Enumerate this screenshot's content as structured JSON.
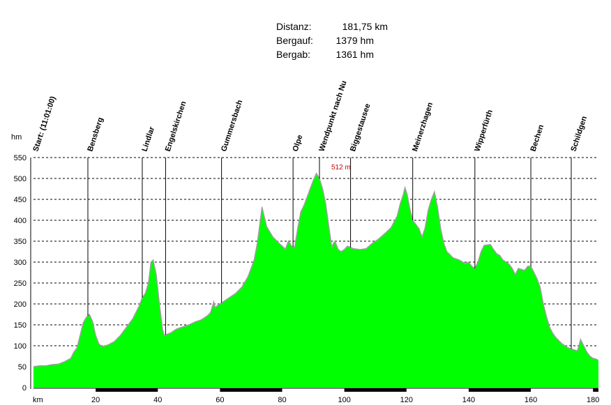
{
  "stats": {
    "distance_label": "Distanz:",
    "distance_value": "181,75 km",
    "ascent_label": "Bergauf:",
    "ascent_value": "1379 hm",
    "descent_label": "Bergab:",
    "descent_value": "1361 hm"
  },
  "colors": {
    "fill": "#00ff00",
    "outline": "#a0a0a0",
    "grid": "#000000",
    "max_label": "#cc0000"
  },
  "chart_data": {
    "type": "area",
    "title": "",
    "xlabel": "km",
    "ylabel": "hm",
    "xlim": [
      0,
      181.75
    ],
    "ylim": [
      0,
      550
    ],
    "xticks": [
      20,
      40,
      60,
      80,
      100,
      120,
      140,
      160,
      180
    ],
    "yticks": [
      0,
      50,
      100,
      150,
      200,
      250,
      300,
      350,
      400,
      450,
      500,
      550
    ],
    "grid": "horizontal dashed",
    "max_label": "512 m",
    "max_point": {
      "x": 91,
      "y": 512
    },
    "waypoints": [
      {
        "name": "Start: (11:01:00)",
        "km": 0
      },
      {
        "name": "Bensberg",
        "km": 17.5
      },
      {
        "name": "Lindlar",
        "km": 35
      },
      {
        "name": "Engelskirchen",
        "km": 42.5
      },
      {
        "name": "Gummersbach",
        "km": 60.5
      },
      {
        "name": "Olpe",
        "km": 83.5
      },
      {
        "name": "Wendpunkt nach Nu",
        "km": 92
      },
      {
        "name": "Biggestausee",
        "km": 102
      },
      {
        "name": "Meinerzhagen",
        "km": 122
      },
      {
        "name": "Wipperfürth",
        "km": 142
      },
      {
        "name": "Bechen",
        "km": 160
      },
      {
        "name": "Schildgen",
        "km": 173
      }
    ],
    "profile": [
      [
        0,
        50
      ],
      [
        2,
        52
      ],
      [
        4,
        52
      ],
      [
        6,
        55
      ],
      [
        8,
        56
      ],
      [
        10,
        62
      ],
      [
        12,
        70
      ],
      [
        13,
        85
      ],
      [
        14,
        95
      ],
      [
        15,
        125
      ],
      [
        16,
        155
      ],
      [
        17,
        168
      ],
      [
        18,
        175
      ],
      [
        19,
        158
      ],
      [
        20,
        125
      ],
      [
        21,
        105
      ],
      [
        22,
        98
      ],
      [
        24,
        102
      ],
      [
        26,
        110
      ],
      [
        28,
        125
      ],
      [
        30,
        145
      ],
      [
        32,
        165
      ],
      [
        34,
        195
      ],
      [
        35,
        215
      ],
      [
        36,
        225
      ],
      [
        37,
        250
      ],
      [
        37.8,
        300
      ],
      [
        38.5,
        305
      ],
      [
        39.5,
        270
      ],
      [
        40.5,
        200
      ],
      [
        41.5,
        140
      ],
      [
        42,
        125
      ],
      [
        44,
        130
      ],
      [
        46,
        140
      ],
      [
        48,
        145
      ],
      [
        50,
        150
      ],
      [
        52,
        157
      ],
      [
        54,
        162
      ],
      [
        56,
        172
      ],
      [
        57,
        180
      ],
      [
        58,
        205
      ],
      [
        58.5,
        190
      ],
      [
        59,
        195
      ],
      [
        61,
        205
      ],
      [
        63,
        215
      ],
      [
        65,
        225
      ],
      [
        67,
        240
      ],
      [
        69,
        265
      ],
      [
        71,
        305
      ],
      [
        72,
        345
      ],
      [
        73,
        400
      ],
      [
        73.5,
        432
      ],
      [
        74.2,
        410
      ],
      [
        75,
        385
      ],
      [
        77,
        360
      ],
      [
        79,
        345
      ],
      [
        80.5,
        335
      ],
      [
        81,
        330
      ],
      [
        82,
        350
      ],
      [
        82.5,
        345
      ],
      [
        83,
        338
      ],
      [
        84,
        335
      ],
      [
        85,
        380
      ],
      [
        86,
        420
      ],
      [
        87,
        435
      ],
      [
        88,
        455
      ],
      [
        89,
        475
      ],
      [
        90,
        495
      ],
      [
        91,
        512
      ],
      [
        92,
        500
      ],
      [
        93,
        475
      ],
      [
        94,
        440
      ],
      [
        95,
        385
      ],
      [
        96,
        335
      ],
      [
        96.5,
        345
      ],
      [
        97,
        350
      ],
      [
        98,
        330
      ],
      [
        99,
        325
      ],
      [
        100,
        330
      ],
      [
        101,
        338
      ],
      [
        103,
        332
      ],
      [
        105,
        330
      ],
      [
        107,
        332
      ],
      [
        109,
        345
      ],
      [
        111,
        355
      ],
      [
        113,
        368
      ],
      [
        115,
        382
      ],
      [
        117,
        410
      ],
      [
        118,
        440
      ],
      [
        119,
        462
      ],
      [
        119.5,
        478
      ],
      [
        120.2,
        462
      ],
      [
        121,
        430
      ],
      [
        122,
        400
      ],
      [
        124,
        380
      ],
      [
        125,
        360
      ],
      [
        126,
        382
      ],
      [
        127,
        425
      ],
      [
        128,
        450
      ],
      [
        129,
        468
      ],
      [
        130,
        430
      ],
      [
        131,
        380
      ],
      [
        132,
        345
      ],
      [
        133,
        325
      ],
      [
        135,
        310
      ],
      [
        137,
        305
      ],
      [
        139,
        296
      ],
      [
        140,
        300
      ],
      [
        141,
        290
      ],
      [
        142,
        285
      ],
      [
        143,
        300
      ],
      [
        144,
        325
      ],
      [
        145,
        340
      ],
      [
        147,
        342
      ],
      [
        148,
        330
      ],
      [
        149,
        320
      ],
      [
        150,
        316
      ],
      [
        151,
        305
      ],
      [
        152,
        300
      ],
      [
        153,
        295
      ],
      [
        154,
        285
      ],
      [
        155,
        270
      ],
      [
        156,
        285
      ],
      [
        158,
        280
      ],
      [
        159,
        290
      ],
      [
        160,
        290
      ],
      [
        161,
        275
      ],
      [
        162,
        260
      ],
      [
        163,
        240
      ],
      [
        164,
        200
      ],
      [
        165,
        170
      ],
      [
        166,
        145
      ],
      [
        167,
        130
      ],
      [
        168,
        120
      ],
      [
        170,
        105
      ],
      [
        172,
        95
      ],
      [
        174,
        90
      ],
      [
        175,
        88
      ],
      [
        176,
        115
      ],
      [
        177,
        100
      ],
      [
        178,
        85
      ],
      [
        179,
        75
      ],
      [
        180,
        70
      ],
      [
        181,
        68
      ],
      [
        181.75,
        65
      ]
    ]
  }
}
